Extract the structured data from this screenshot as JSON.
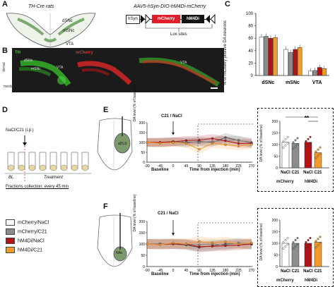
{
  "panels": {
    "A": "A",
    "B": "B",
    "C": "C",
    "D": "D",
    "E": "E",
    "F": "F"
  },
  "panelA": {
    "rat_label": "TH-Cre rats",
    "region_dsnc": "dSNc",
    "region_msnc": "mSNc",
    "region_vta": "VTA",
    "vector_title": "AAV5-hSyn-DIO-hM4Di-mCherry",
    "promoter": "hSyn",
    "gene1": "mCherry",
    "gene2": "hM4Di",
    "lox_label": "Lox sites"
  },
  "panelB": {
    "th_label": "TH",
    "mcherry_label": "mCherry",
    "dsnc": "dSNc",
    "msnc": "mSNc",
    "vta": "VTA",
    "dorsal": "dorsal",
    "medial": "medial",
    "colors": {
      "th": "#35c52a",
      "mcherry": "#e02525"
    }
  },
  "panelC": {
    "ylabel": "% of mCherry positive DA neurons",
    "yticks": [
      "0",
      "20",
      "40",
      "60",
      "80",
      "100"
    ],
    "categories": [
      "dSNc",
      "mSNc",
      "VTA"
    ]
  },
  "panelD": {
    "injection": "NaCl/C21 (i.p.)",
    "bl": "BL",
    "treatment": "Treatment",
    "fractions": "Fractions collection: every 45 min"
  },
  "panelE": {
    "region": "aDLS",
    "marker": "C21 / NaCl",
    "ylabel": "DA level (% of baseline)",
    "xticks": [
      "-90",
      "-45",
      "0",
      "45",
      "90",
      "135",
      "180",
      "225",
      "270"
    ],
    "yticks": [
      "0",
      "50",
      "100",
      "150",
      "200"
    ],
    "baseline": "Baseline",
    "time_label": "Time from injection (min)",
    "bar_ylabel": "DA level (% of baseline)",
    "bar_yticks": [
      "0",
      "50",
      "100",
      "150",
      "200"
    ],
    "bar_cats": [
      "NaCl",
      "C21",
      "NaCl",
      "C21"
    ],
    "group1": "mCherry",
    "group2": "hM4Di",
    "sig": "**"
  },
  "panelF": {
    "region": "NAc",
    "marker": "C21 / NaCl",
    "ylabel": "DA level (% of baseline)",
    "xticks": [
      "-90",
      "-45",
      "0",
      "45",
      "90",
      "135",
      "180",
      "225",
      "270"
    ],
    "yticks": [
      "0",
      "50",
      "100",
      "150",
      "200"
    ],
    "baseline": "Baseline",
    "time_label": "Time from injection (min)",
    "bar_ylabel": "DA level (% of baseline)",
    "bar_yticks": [
      "0",
      "50",
      "100",
      "150",
      "200"
    ],
    "bar_cats": [
      "NaCl",
      "C21",
      "NaCl",
      "C21"
    ],
    "group1": "mCherry",
    "group2": "hM4Di"
  },
  "legend": [
    {
      "label": "mCherry/NaCl",
      "color": "#ffffff"
    },
    {
      "label": "mCherry/C21",
      "color": "#8c8c8c"
    },
    {
      "label": "hM4Di/NaCl",
      "color": "#b31217"
    },
    {
      "label": "hM4Di/C21",
      "color": "#f39a2b"
    }
  ],
  "chart_data": [
    {
      "id": "C",
      "type": "bar",
      "categories": [
        "dSNc",
        "mSNc",
        "VTA"
      ],
      "ylabel": "% of mCherry positive DA neurons",
      "ylim": [
        0,
        100
      ],
      "series": [
        {
          "name": "mCherry/NaCl",
          "color": "#ffffff",
          "values": [
            62,
            42,
            7
          ]
        },
        {
          "name": "mCherry/C21",
          "color": "#8c8c8c",
          "values": [
            63,
            37,
            8
          ]
        },
        {
          "name": "hM4Di/NaCl",
          "color": "#b31217",
          "values": [
            60,
            42,
            13
          ]
        },
        {
          "name": "hM4Di/C21",
          "color": "#f39a2b",
          "values": [
            61,
            45,
            11
          ]
        }
      ]
    },
    {
      "id": "E-time",
      "type": "line",
      "x": [
        -90,
        -45,
        0,
        45,
        90,
        135,
        180,
        225,
        270
      ],
      "ylim": [
        0,
        200
      ],
      "series": [
        {
          "name": "mCherry/NaCl",
          "color": "#555555",
          "values": [
            100,
            100,
            105,
            98,
            105,
            100,
            125,
            110,
            100
          ]
        },
        {
          "name": "mCherry/C21",
          "color": "#8c8c8c",
          "values": [
            100,
            98,
            102,
            104,
            100,
            105,
            110,
            112,
            95
          ]
        },
        {
          "name": "hM4Di/NaCl",
          "color": "#b31217",
          "values": [
            100,
            101,
            103,
            110,
            112,
            120,
            108,
            95,
            95
          ]
        },
        {
          "name": "hM4Di/C21",
          "color": "#f39a2b",
          "values": [
            100,
            96,
            100,
            95,
            65,
            95,
            88,
            82,
            90
          ]
        }
      ]
    },
    {
      "id": "E-bar",
      "type": "bar",
      "categories": [
        "NaCl",
        "C21",
        "NaCl",
        "C21"
      ],
      "ylim": [
        0,
        200
      ],
      "values": [
        110,
        105,
        110,
        65
      ],
      "colors": [
        "#ffffff",
        "#8c8c8c",
        "#b31217",
        "#f39a2b"
      ]
    },
    {
      "id": "F-time",
      "type": "line",
      "x": [
        -90,
        -45,
        0,
        45,
        90,
        135,
        180,
        225,
        270
      ],
      "ylim": [
        0,
        200
      ],
      "series": [
        {
          "name": "mCherry/NaCl",
          "color": "#555555",
          "values": [
            100,
            100,
            100,
            95,
            85,
            92,
            100,
            102,
            98
          ]
        },
        {
          "name": "mCherry/C21",
          "color": "#8c8c8c",
          "values": [
            100,
            102,
            100,
            100,
            96,
            100,
            95,
            105,
            100
          ]
        },
        {
          "name": "hM4Di/NaCl",
          "color": "#b31217",
          "values": [
            100,
            98,
            100,
            100,
            88,
            90,
            92,
            95,
            100
          ]
        },
        {
          "name": "hM4Di/C21",
          "color": "#f39a2b",
          "values": [
            100,
            97,
            105,
            100,
            112,
            105,
            110,
            100,
            105
          ]
        }
      ]
    },
    {
      "id": "F-bar",
      "type": "bar",
      "categories": [
        "NaCl",
        "C21",
        "NaCl",
        "C21"
      ],
      "ylim": [
        0,
        200
      ],
      "values": [
        100,
        100,
        100,
        105
      ],
      "colors": [
        "#ffffff",
        "#8c8c8c",
        "#b31217",
        "#f39a2b"
      ]
    }
  ]
}
